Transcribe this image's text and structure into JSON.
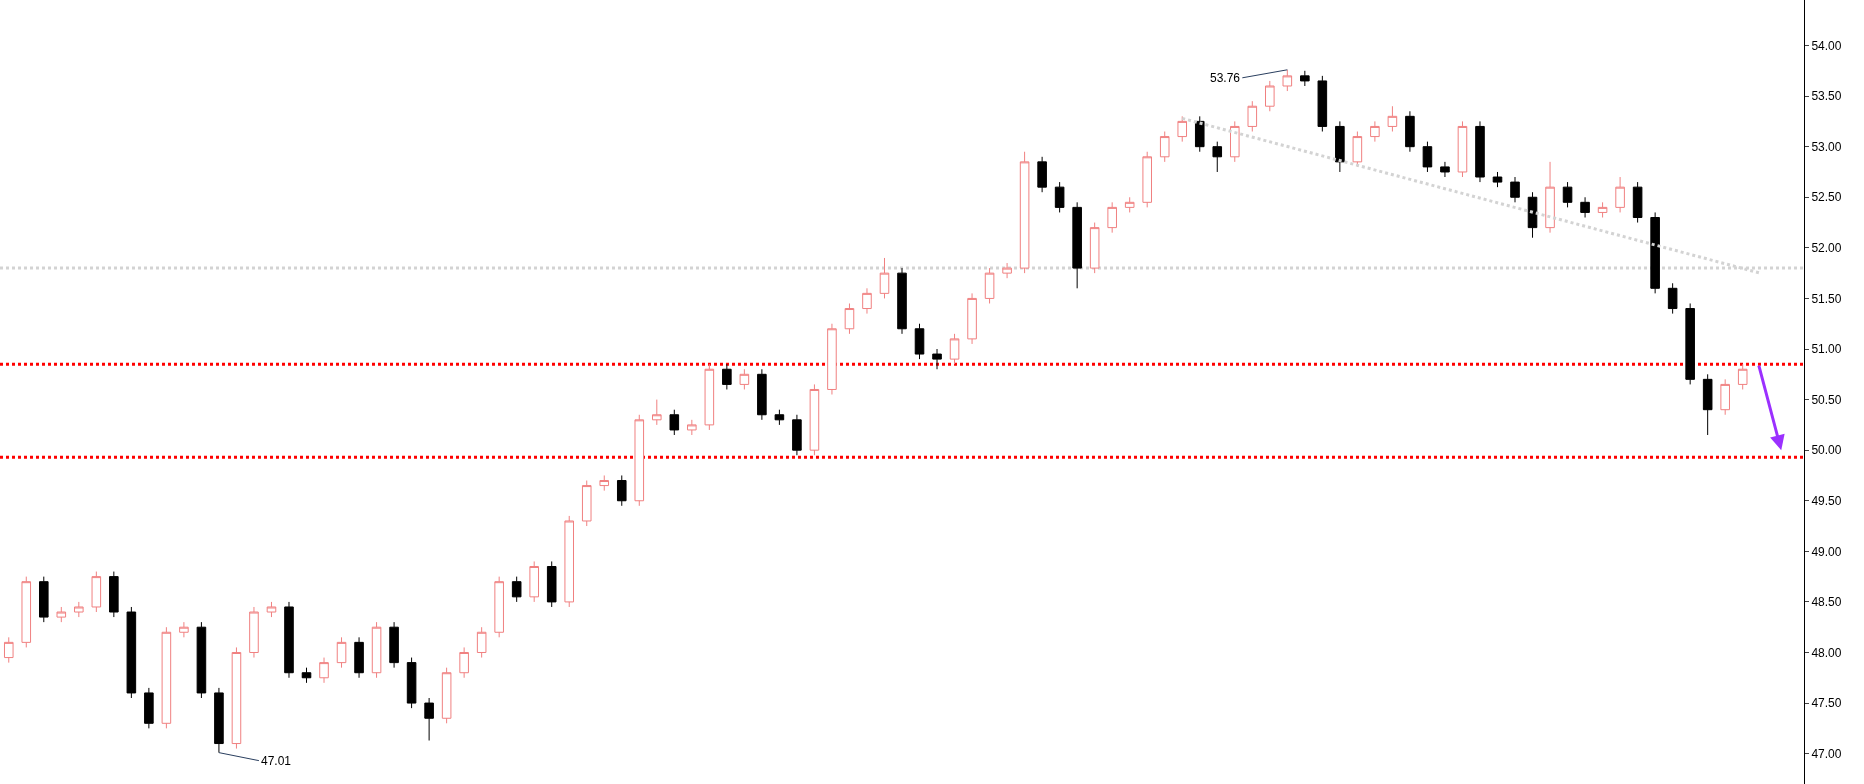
{
  "chart_data": {
    "type": "candlestick",
    "categories": [
      null,
      null,
      null,
      null,
      null,
      null,
      null,
      null,
      null,
      null,
      null,
      null,
      null,
      null,
      null,
      null,
      null,
      null,
      null,
      null,
      null,
      null,
      null,
      null,
      null,
      null,
      null,
      null,
      null,
      null,
      null,
      null,
      null,
      null,
      null,
      null,
      null,
      null,
      null,
      null,
      null,
      null,
      null,
      null,
      null,
      null,
      null,
      null,
      null,
      null,
      null,
      null,
      null,
      null,
      null,
      null,
      null,
      null,
      null,
      null,
      null,
      null,
      null,
      null,
      null,
      null,
      null,
      null,
      null,
      null,
      null,
      null,
      null,
      null,
      null,
      null,
      null,
      null,
      null,
      null,
      null,
      null,
      null,
      null,
      null,
      null,
      null,
      null,
      null,
      null,
      null,
      null,
      null,
      null,
      null,
      null,
      null,
      null,
      null,
      null,
      null,
      null,
      null
    ],
    "ohlc": [
      [
        47.95,
        48.15,
        47.9,
        48.1
      ],
      [
        48.1,
        48.75,
        48.05,
        48.7
      ],
      [
        48.7,
        48.75,
        48.3,
        48.35
      ],
      [
        48.35,
        48.45,
        48.3,
        48.4
      ],
      [
        48.4,
        48.5,
        48.35,
        48.45
      ],
      [
        48.45,
        48.8,
        48.4,
        48.75
      ],
      [
        48.75,
        48.8,
        48.35,
        48.4
      ],
      [
        48.4,
        48.45,
        47.55,
        47.6
      ],
      [
        47.6,
        47.65,
        47.25,
        47.3
      ],
      [
        47.3,
        48.25,
        47.25,
        48.2
      ],
      [
        48.2,
        48.3,
        48.15,
        48.25
      ],
      [
        48.25,
        48.3,
        47.55,
        47.6
      ],
      [
        47.6,
        47.65,
        47.01,
        47.1
      ],
      [
        47.1,
        48.05,
        47.05,
        48.0
      ],
      [
        48.0,
        48.45,
        47.95,
        48.4
      ],
      [
        48.4,
        48.5,
        48.35,
        48.45
      ],
      [
        48.45,
        48.5,
        47.75,
        47.8
      ],
      [
        47.8,
        47.85,
        47.7,
        47.75
      ],
      [
        47.75,
        47.95,
        47.7,
        47.9
      ],
      [
        47.9,
        48.15,
        47.85,
        48.1
      ],
      [
        48.1,
        48.15,
        47.75,
        47.8
      ],
      [
        47.8,
        48.3,
        47.75,
        48.25
      ],
      [
        48.25,
        48.3,
        47.85,
        47.9
      ],
      [
        47.9,
        47.95,
        47.45,
        47.5
      ],
      [
        47.5,
        47.55,
        47.13,
        47.35
      ],
      [
        47.35,
        47.85,
        47.3,
        47.8
      ],
      [
        47.8,
        48.05,
        47.75,
        48.0
      ],
      [
        48.0,
        48.25,
        47.95,
        48.2
      ],
      [
        48.2,
        48.75,
        48.15,
        48.7
      ],
      [
        48.7,
        48.75,
        48.5,
        48.55
      ],
      [
        48.55,
        48.9,
        48.5,
        48.85
      ],
      [
        48.85,
        48.9,
        48.45,
        48.5
      ],
      [
        48.5,
        49.35,
        48.45,
        49.3
      ],
      [
        49.3,
        49.7,
        49.25,
        49.65
      ],
      [
        49.65,
        49.75,
        49.6,
        49.7
      ],
      [
        49.7,
        49.75,
        49.45,
        49.5
      ],
      [
        49.5,
        50.35,
        49.45,
        50.3
      ],
      [
        50.3,
        50.5,
        50.25,
        50.35
      ],
      [
        50.35,
        50.4,
        50.15,
        50.2
      ],
      [
        50.2,
        50.3,
        50.15,
        50.25
      ],
      [
        50.25,
        50.85,
        50.2,
        50.8
      ],
      [
        50.8,
        50.85,
        50.6,
        50.65
      ],
      [
        50.65,
        50.8,
        50.6,
        50.75
      ],
      [
        50.75,
        50.8,
        50.3,
        50.35
      ],
      [
        50.35,
        50.4,
        50.25,
        50.3
      ],
      [
        50.3,
        50.35,
        49.95,
        50.0
      ],
      [
        50.0,
        50.65,
        49.95,
        50.6
      ],
      [
        50.6,
        51.25,
        50.55,
        51.2
      ],
      [
        51.2,
        51.45,
        51.15,
        51.4
      ],
      [
        51.4,
        51.6,
        51.35,
        51.55
      ],
      [
        51.55,
        51.9,
        51.5,
        51.75
      ],
      [
        51.75,
        51.8,
        51.15,
        51.2
      ],
      [
        51.2,
        51.25,
        50.9,
        50.95
      ],
      [
        50.95,
        51.0,
        50.8,
        50.9
      ],
      [
        50.9,
        51.15,
        50.85,
        51.1
      ],
      [
        51.1,
        51.55,
        51.05,
        51.5
      ],
      [
        51.5,
        51.8,
        51.45,
        51.75
      ],
      [
        51.75,
        51.85,
        51.7,
        51.8
      ],
      [
        51.8,
        52.95,
        51.75,
        52.85
      ],
      [
        52.85,
        52.9,
        52.55,
        52.6
      ],
      [
        52.6,
        52.65,
        52.35,
        52.4
      ],
      [
        52.4,
        52.45,
        51.6,
        51.8
      ],
      [
        51.8,
        52.25,
        51.75,
        52.2
      ],
      [
        52.2,
        52.45,
        52.15,
        52.4
      ],
      [
        52.4,
        52.5,
        52.35,
        52.45
      ],
      [
        52.45,
        52.95,
        52.4,
        52.9
      ],
      [
        52.9,
        53.15,
        52.85,
        53.1
      ],
      [
        53.1,
        53.3,
        53.05,
        53.25
      ],
      [
        53.25,
        53.3,
        52.95,
        53.0
      ],
      [
        53.0,
        53.05,
        52.75,
        52.9
      ],
      [
        52.9,
        53.25,
        52.85,
        53.2
      ],
      [
        53.2,
        53.45,
        53.15,
        53.4
      ],
      [
        53.4,
        53.65,
        53.35,
        53.6
      ],
      [
        53.6,
        53.76,
        53.55,
        53.7
      ],
      [
        53.7,
        53.75,
        53.6,
        53.65
      ],
      [
        53.65,
        53.7,
        53.15,
        53.2
      ],
      [
        53.2,
        53.25,
        52.75,
        52.85
      ],
      [
        52.85,
        53.15,
        52.8,
        53.1
      ],
      [
        53.1,
        53.25,
        53.05,
        53.2
      ],
      [
        53.2,
        53.4,
        53.15,
        53.3
      ],
      [
        53.3,
        53.35,
        52.95,
        53.0
      ],
      [
        53.0,
        53.05,
        52.75,
        52.8
      ],
      [
        52.8,
        52.85,
        52.7,
        52.75
      ],
      [
        52.75,
        53.25,
        52.7,
        53.2
      ],
      [
        53.2,
        53.25,
        52.65,
        52.7
      ],
      [
        52.7,
        52.75,
        52.6,
        52.65
      ],
      [
        52.65,
        52.7,
        52.45,
        52.5
      ],
      [
        52.5,
        52.55,
        52.1,
        52.2
      ],
      [
        52.2,
        52.85,
        52.15,
        52.6
      ],
      [
        52.6,
        52.65,
        52.4,
        52.45
      ],
      [
        52.45,
        52.5,
        52.3,
        52.35
      ],
      [
        52.35,
        52.45,
        52.3,
        52.4
      ],
      [
        52.4,
        52.7,
        52.35,
        52.6
      ],
      [
        52.6,
        52.65,
        52.25,
        52.3
      ],
      [
        52.3,
        52.35,
        51.55,
        51.6
      ],
      [
        51.6,
        51.65,
        51.35,
        51.4
      ],
      [
        51.4,
        51.45,
        50.65,
        50.7
      ],
      [
        50.7,
        50.75,
        50.15,
        50.4
      ],
      [
        50.4,
        50.7,
        50.35,
        50.65
      ],
      [
        50.65,
        50.85,
        50.6,
        50.8
      ],
      null,
      null,
      null
    ],
    "series": [
      {
        "type": "line",
        "color": "#d3d3d3",
        "line_style": "dotted",
        "values": [
          null,
          null,
          null,
          null,
          null,
          null,
          null,
          null,
          null,
          null,
          null,
          null,
          null,
          null,
          null,
          null,
          null,
          null,
          null,
          null,
          null,
          null,
          null,
          null,
          null,
          null,
          null,
          null,
          null,
          null,
          null,
          null,
          null,
          null,
          null,
          null,
          null,
          null,
          null,
          null,
          null,
          null,
          null,
          null,
          null,
          null,
          null,
          null,
          null,
          null,
          null,
          null,
          null,
          null,
          null,
          null,
          null,
          null,
          null,
          null,
          null,
          null,
          null,
          null,
          null,
          null,
          null,
          53.28,
          null,
          null,
          null,
          null,
          null,
          null,
          null,
          null,
          null,
          null,
          null,
          null,
          null,
          null,
          null,
          null,
          null,
          null,
          null,
          null,
          null,
          null,
          null,
          null,
          null,
          null,
          null,
          null,
          null,
          null,
          null,
          null,
          51.75,
          null,
          null
        ]
      }
    ],
    "ref_lines": [
      {
        "axis": "y",
        "value": 50.85,
        "color": "#ff0000",
        "line_style": "dotted"
      },
      {
        "axis": "y",
        "value": 49.93,
        "color": "#ff0000",
        "line_style": "dotted"
      },
      {
        "axis": "y",
        "value": 51.8,
        "color": "#d3d3d3",
        "line_style": "dotted"
      }
    ],
    "annotations": [
      "53.76",
      "47.01"
    ],
    "ylim": [
      46.7,
      54.45
    ],
    "yticks": [
      {
        "value": 47,
        "label": "47.00"
      },
      {
        "value": 47.5,
        "label": "47.50"
      },
      {
        "value": 48,
        "label": "48.00"
      },
      {
        "value": 48.5,
        "label": "48.50"
      },
      {
        "value": 49,
        "label": "49.00"
      },
      {
        "value": 49.5,
        "label": "49.50"
      },
      {
        "value": 50,
        "label": "50.00"
      },
      {
        "value": 50.5,
        "label": "50.50"
      },
      {
        "value": 51,
        "label": "51.00"
      },
      {
        "value": 51.5,
        "label": "51.50"
      },
      {
        "value": 52,
        "label": "52.00"
      },
      {
        "value": 52.5,
        "label": "52.50"
      },
      {
        "value": 53,
        "label": "53.00"
      },
      {
        "value": 53.5,
        "label": "53.50"
      },
      {
        "value": 54,
        "label": "54.00"
      }
    ],
    "tick_labels": "y"
  }
}
